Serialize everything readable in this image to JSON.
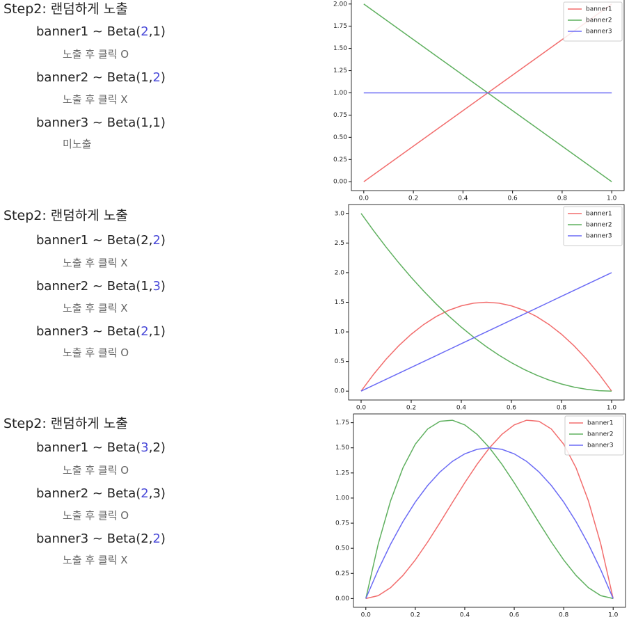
{
  "steps": [
    {
      "title": "Step2: 랜덤하게 노출",
      "items": [
        {
          "parts": [
            "banner1 ~ Beta(",
            {
              "text": "2",
              "color": "#4a4ad8"
            },
            ",1)"
          ],
          "note": "노출 후 클릭 O"
        },
        {
          "parts": [
            "banner2 ~ Beta(1,",
            {
              "text": "2",
              "color": "#4a4ad8"
            },
            ")"
          ],
          "note": "노출 후 클릭 X"
        },
        {
          "parts": [
            "banner3 ~ Beta(1,1)"
          ],
          "note": "미노출"
        }
      ]
    },
    {
      "title": "Step2: 랜덤하게 노출",
      "items": [
        {
          "parts": [
            "banner1 ~ Beta(2,",
            {
              "text": "2",
              "color": "#4a4ad8"
            },
            ")"
          ],
          "note": "노출 후 클릭 X"
        },
        {
          "parts": [
            "banner2 ~ Beta(1,",
            {
              "text": "3",
              "color": "#4a4ad8"
            },
            ")"
          ],
          "note": "노출 후 클릭 X"
        },
        {
          "parts": [
            "banner3 ~ Beta(",
            {
              "text": "2",
              "color": "#4a4ad8"
            },
            ",1)"
          ],
          "note": "노출 후 클릭 O"
        }
      ]
    },
    {
      "title": "Step2: 랜덤하게 노출",
      "items": [
        {
          "parts": [
            "banner1 ~ Beta(",
            {
              "text": "3",
              "color": "#4a4ad8"
            },
            ",2)"
          ],
          "note": "노출 후 클릭 O"
        },
        {
          "parts": [
            "banner2 ~ Beta(",
            {
              "text": "2",
              "color": "#4a4ad8"
            },
            ",3)"
          ],
          "note": "노출 후 클릭 O"
        },
        {
          "parts": [
            "banner3 ~ Beta(2,",
            {
              "text": "2",
              "color": "#4a4ad8"
            },
            ")"
          ],
          "note": "노출 후 클릭 X"
        }
      ]
    }
  ],
  "chart_data": [
    {
      "type": "line",
      "x": [
        0,
        1
      ],
      "series": [
        {
          "name": "banner1",
          "color": "#f26d6d",
          "values": [
            0,
            2
          ]
        },
        {
          "name": "banner2",
          "color": "#5fb05f",
          "values": [
            2,
            0
          ]
        },
        {
          "name": "banner3",
          "color": "#6b6bf5",
          "values": [
            1,
            1
          ]
        }
      ],
      "xlim": [
        -0.05,
        1.05
      ],
      "ylim": [
        -0.1,
        2.1
      ],
      "xticks": [
        {
          "value": 0,
          "label": "0.0"
        },
        0.2,
        0.4,
        0.6,
        0.8,
        {
          "value": 1,
          "label": "1.0"
        }
      ],
      "yticks": [
        {
          "value": 0,
          "label": "0.00"
        },
        0.25,
        {
          "value": 0.5,
          "label": "0.50"
        },
        0.75,
        {
          "value": 1,
          "label": "1.00"
        },
        1.25,
        {
          "value": 1.5,
          "label": "1.50"
        },
        1.75,
        {
          "value": 2,
          "label": "2.00"
        }
      ],
      "legend": "upper right"
    },
    {
      "type": "line",
      "x": [
        0,
        0.05,
        0.1,
        0.15,
        0.2,
        0.25,
        0.3,
        0.35,
        0.4,
        0.45,
        0.5,
        0.55,
        0.6,
        0.65,
        0.7,
        0.75,
        0.8,
        0.85,
        0.9,
        0.95,
        1
      ],
      "series": [
        {
          "name": "banner1",
          "color": "#f26d6d",
          "values": [
            0,
            0.285,
            0.54,
            0.765,
            0.96,
            1.125,
            1.26,
            1.365,
            1.44,
            1.485,
            1.5,
            1.485,
            1.44,
            1.365,
            1.26,
            1.125,
            0.96,
            0.765,
            0.54,
            0.285,
            0
          ]
        },
        {
          "name": "banner2",
          "color": "#5fb05f",
          "values": [
            3,
            2.7075,
            2.43,
            2.1675,
            1.92,
            1.6875,
            1.47,
            1.2675,
            1.08,
            0.9075,
            0.75,
            0.6075,
            0.48,
            0.3675,
            0.27,
            0.1875,
            0.12,
            0.0675,
            0.03,
            0.0075,
            0
          ]
        },
        {
          "name": "banner3",
          "color": "#6b6bf5",
          "values": [
            0,
            0.1,
            0.2,
            0.3,
            0.4,
            0.5,
            0.6,
            0.7,
            0.8,
            0.9,
            1,
            1.1,
            1.2,
            1.3,
            1.4,
            1.5,
            1.6,
            1.7,
            1.8,
            1.9,
            2
          ]
        }
      ],
      "xlim": [
        -0.05,
        1.05
      ],
      "ylim": [
        -0.15,
        3.15
      ],
      "xticks": [
        {
          "value": 0,
          "label": "0.0"
        },
        0.2,
        0.4,
        0.6,
        0.8,
        {
          "value": 1,
          "label": "1.0"
        }
      ],
      "yticks": [
        {
          "value": 0,
          "label": "0.0"
        },
        0.5,
        {
          "value": 1,
          "label": "1.0"
        },
        1.5,
        {
          "value": 2,
          "label": "2.0"
        },
        2.5,
        {
          "value": 3,
          "label": "3.0"
        }
      ],
      "legend": "upper right"
    },
    {
      "type": "line",
      "x": [
        0,
        0.05,
        0.1,
        0.15,
        0.2,
        0.25,
        0.3,
        0.35,
        0.4,
        0.45,
        0.5,
        0.55,
        0.6,
        0.65,
        0.7,
        0.75,
        0.8,
        0.85,
        0.9,
        0.95,
        1
      ],
      "series": [
        {
          "name": "banner1",
          "color": "#f26d6d",
          "values": [
            0,
            0.0285,
            0.108,
            0.2295,
            0.384,
            0.5625,
            0.756,
            0.9555,
            1.152,
            1.3365,
            1.5,
            1.6335,
            1.728,
            1.7745,
            1.764,
            1.6875,
            1.536,
            1.3005,
            0.972,
            0.5415,
            0
          ]
        },
        {
          "name": "banner2",
          "color": "#5fb05f",
          "values": [
            0,
            0.5415,
            0.972,
            1.3005,
            1.536,
            1.6875,
            1.764,
            1.7745,
            1.728,
            1.6335,
            1.5,
            1.3365,
            1.152,
            0.9555,
            0.756,
            0.5625,
            0.384,
            0.2295,
            0.108,
            0.0285,
            0
          ]
        },
        {
          "name": "banner3",
          "color": "#6b6bf5",
          "values": [
            0,
            0.285,
            0.54,
            0.765,
            0.96,
            1.125,
            1.26,
            1.365,
            1.44,
            1.485,
            1.5,
            1.485,
            1.44,
            1.365,
            1.26,
            1.125,
            0.96,
            0.765,
            0.54,
            0.285,
            0
          ]
        }
      ],
      "xlim": [
        -0.05,
        1.05
      ],
      "ylim": [
        -0.0875,
        1.8375
      ],
      "xticks": [
        {
          "value": 0,
          "label": "0.0"
        },
        0.2,
        0.4,
        0.6,
        0.8,
        {
          "value": 1,
          "label": "1.0"
        }
      ],
      "yticks": [
        {
          "value": 0,
          "label": "0.00"
        },
        0.25,
        {
          "value": 0.5,
          "label": "0.50"
        },
        0.75,
        {
          "value": 1,
          "label": "1.00"
        },
        1.25,
        {
          "value": 1.5,
          "label": "1.50"
        },
        1.75
      ],
      "legend": "upper right"
    }
  ]
}
